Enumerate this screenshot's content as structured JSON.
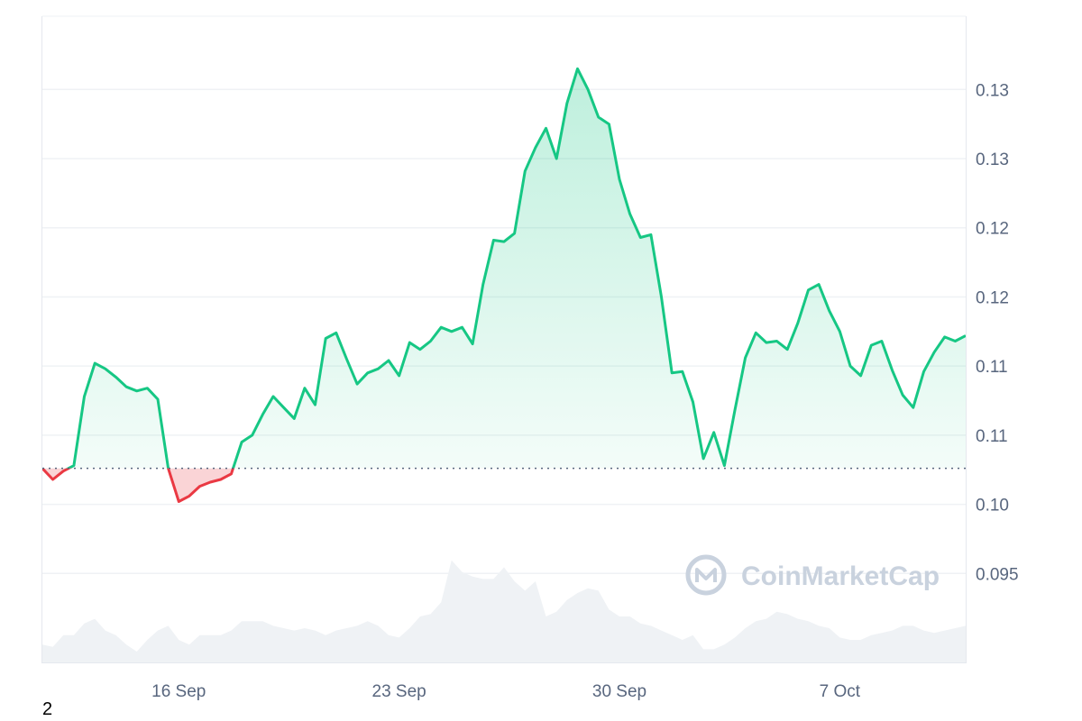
{
  "watermark": {
    "text": "CoinMarketCap"
  },
  "corner_label": "2",
  "chart_data": {
    "type": "area",
    "title": "",
    "xlabel": "",
    "ylabel": "",
    "x_ticks": [
      "16 Sep",
      "23 Sep",
      "30 Sep",
      "7 Oct"
    ],
    "y_ticks": [
      "0.13",
      "0.13",
      "0.12",
      "0.12",
      "0.11",
      "0.11",
      "0.10",
      "0.095"
    ],
    "y_tick_values": [
      0.13,
      0.125,
      0.12,
      0.115,
      0.11,
      0.105,
      0.1,
      0.095
    ],
    "ylim": [
      0.0885,
      0.1353
    ],
    "baseline": 0.1026,
    "grid": true,
    "up_color": "#16c784",
    "down_color": "#ea3943",
    "volume_color": "#eff2f5",
    "x": [
      "12 Sep",
      "12 Sep",
      "12 Sep",
      "13 Sep",
      "13 Sep",
      "13 Sep",
      "14 Sep",
      "14 Sep",
      "14 Sep",
      "15 Sep",
      "15 Sep",
      "15 Sep",
      "16 Sep",
      "16 Sep",
      "16 Sep",
      "17 Sep",
      "17 Sep",
      "17 Sep",
      "18 Sep",
      "18 Sep",
      "18 Sep",
      "19 Sep",
      "19 Sep",
      "19 Sep",
      "20 Sep",
      "20 Sep",
      "20 Sep",
      "21 Sep",
      "21 Sep",
      "21 Sep",
      "22 Sep",
      "22 Sep",
      "22 Sep",
      "23 Sep",
      "23 Sep",
      "23 Sep",
      "24 Sep",
      "24 Sep",
      "24 Sep",
      "25 Sep",
      "25 Sep",
      "25 Sep",
      "26 Sep",
      "26 Sep",
      "26 Sep",
      "27 Sep",
      "27 Sep",
      "27 Sep",
      "28 Sep",
      "28 Sep",
      "28 Sep",
      "29 Sep",
      "29 Sep",
      "29 Sep",
      "30 Sep",
      "30 Sep",
      "30 Sep",
      "1 Oct",
      "1 Oct",
      "1 Oct",
      "2 Oct",
      "2 Oct",
      "2 Oct",
      "3 Oct",
      "3 Oct",
      "3 Oct",
      "4 Oct",
      "4 Oct",
      "4 Oct",
      "5 Oct",
      "5 Oct",
      "5 Oct",
      "6 Oct",
      "6 Oct",
      "6 Oct",
      "7 Oct",
      "7 Oct",
      "7 Oct",
      "8 Oct",
      "8 Oct",
      "8 Oct",
      "9 Oct",
      "9 Oct",
      "9 Oct",
      "10 Oct",
      "10 Oct",
      "10 Oct",
      "11 Oct",
      "11 Oct"
    ],
    "price": [
      0.1026,
      0.1018,
      0.1024,
      0.1028,
      0.1078,
      0.1102,
      0.1098,
      0.1092,
      0.1085,
      0.1082,
      0.1084,
      0.1076,
      0.1026,
      0.1002,
      0.1006,
      0.1013,
      0.1016,
      0.1018,
      0.1022,
      0.1045,
      0.105,
      0.1065,
      0.1078,
      0.107,
      0.1062,
      0.1084,
      0.1072,
      0.112,
      0.1124,
      0.1105,
      0.1087,
      0.1095,
      0.1098,
      0.1104,
      0.1093,
      0.1117,
      0.1112,
      0.1118,
      0.1128,
      0.1125,
      0.1128,
      0.1116,
      0.1159,
      0.1191,
      0.119,
      0.1196,
      0.1241,
      0.1258,
      0.1272,
      0.125,
      0.129,
      0.1315,
      0.13,
      0.128,
      0.1275,
      0.1235,
      0.121,
      0.1193,
      0.1195,
      0.115,
      0.1095,
      0.1096,
      0.1074,
      0.1033,
      0.1052,
      0.1028,
      0.1068,
      0.1106,
      0.1124,
      0.1117,
      0.1118,
      0.1112,
      0.1131,
      0.1155,
      0.1159,
      0.114,
      0.1125,
      0.11,
      0.1093,
      0.1115,
      0.1118,
      0.1097,
      0.1079,
      0.107,
      0.1096,
      0.111,
      0.1121,
      0.1118,
      0.1122
    ],
    "volume": [
      0.04,
      0.035,
      0.06,
      0.06,
      0.085,
      0.095,
      0.07,
      0.06,
      0.04,
      0.025,
      0.05,
      0.07,
      0.08,
      0.05,
      0.04,
      0.06,
      0.06,
      0.06,
      0.07,
      0.09,
      0.09,
      0.09,
      0.08,
      0.075,
      0.07,
      0.075,
      0.07,
      0.06,
      0.07,
      0.075,
      0.08,
      0.09,
      0.08,
      0.06,
      0.055,
      0.075,
      0.1,
      0.105,
      0.13,
      0.22,
      0.195,
      0.185,
      0.18,
      0.18,
      0.205,
      0.175,
      0.155,
      0.175,
      0.1,
      0.11,
      0.135,
      0.15,
      0.16,
      0.155,
      0.115,
      0.1,
      0.1,
      0.085,
      0.08,
      0.07,
      0.06,
      0.05,
      0.06,
      0.03,
      0.03,
      0.04,
      0.055,
      0.075,
      0.09,
      0.095,
      0.11,
      0.105,
      0.095,
      0.09,
      0.08,
      0.075,
      0.055,
      0.05,
      0.05,
      0.06,
      0.065,
      0.07,
      0.08,
      0.08,
      0.07,
      0.065,
      0.07,
      0.075,
      0.08
    ]
  }
}
